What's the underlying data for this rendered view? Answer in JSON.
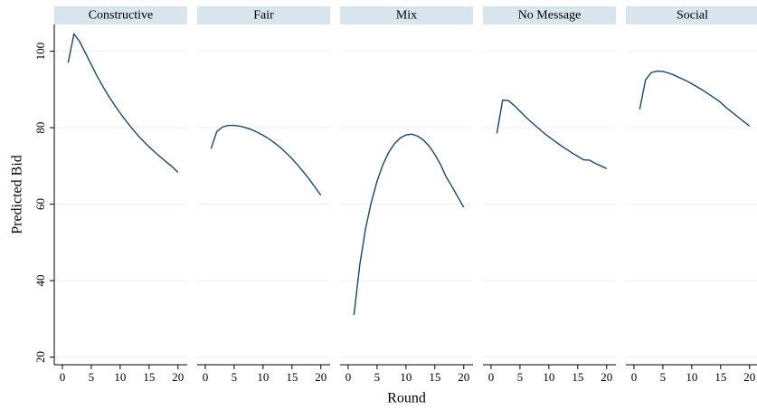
{
  "chart_data": [
    {
      "type": "line",
      "title": "Constructive",
      "y_label": "Predicted Bid",
      "x": [
        1,
        2,
        3,
        4,
        5,
        6,
        7,
        8,
        9,
        10,
        11,
        12,
        13,
        14,
        15,
        16,
        17,
        18,
        19,
        20
      ],
      "values": [
        97,
        104.5,
        102.5,
        99.5,
        96.5,
        93.5,
        90.8,
        88.3,
        86,
        83.8,
        81.8,
        79.9,
        78.1,
        76.5,
        75,
        73.6,
        72.3,
        71,
        69.8,
        68.3
      ],
      "color": "#1a476f",
      "xlim": [
        -1.4,
        21.6
      ],
      "xticks": [
        0,
        5,
        10,
        15,
        20
      ],
      "ylim": [
        18,
        107
      ],
      "yticks": [
        20,
        40,
        60,
        80,
        100
      ],
      "grid": true
    },
    {
      "type": "line",
      "title": "Fair",
      "x": [
        1,
        2,
        3,
        4,
        5,
        6,
        7,
        8,
        9,
        10,
        11,
        12,
        13,
        14,
        15,
        16,
        17,
        18,
        19,
        20
      ],
      "values": [
        74.5,
        79,
        80.2,
        80.6,
        80.6,
        80.4,
        80,
        79.5,
        78.8,
        78,
        77.1,
        76,
        74.8,
        73.4,
        71.9,
        70.2,
        68.4,
        66.5,
        64.4,
        62.3
      ],
      "color": "#1a476f",
      "xlim": [
        -1.4,
        21.6
      ],
      "xticks": [
        0,
        5,
        10,
        15,
        20
      ],
      "ylim": [
        18,
        107
      ],
      "yticks": [
        20,
        40,
        60,
        80,
        100
      ],
      "grid": true
    },
    {
      "type": "line",
      "title": "Mix",
      "x_label": "Round",
      "x": [
        1,
        2,
        3,
        4,
        5,
        6,
        7,
        8,
        9,
        10,
        11,
        12,
        13,
        14,
        15,
        16,
        17,
        18,
        19,
        20
      ],
      "values": [
        31,
        44,
        53.5,
        60.5,
        66,
        70.3,
        73.5,
        75.8,
        77.3,
        78.1,
        78.3,
        77.8,
        76.8,
        75.2,
        73,
        70.3,
        67,
        64.5,
        61.8,
        59.2
      ],
      "color": "#1a476f",
      "xlim": [
        -1.4,
        21.6
      ],
      "xticks": [
        0,
        5,
        10,
        15,
        20
      ],
      "ylim": [
        18,
        107
      ],
      "yticks": [
        20,
        40,
        60,
        80,
        100
      ],
      "grid": true
    },
    {
      "type": "line",
      "title": "No Message",
      "x": [
        1,
        2,
        3,
        4,
        5,
        6,
        7,
        8,
        9,
        10,
        11,
        12,
        13,
        14,
        15,
        16,
        17,
        18,
        19,
        20
      ],
      "values": [
        78.5,
        87.2,
        87.1,
        85.8,
        84.3,
        82.8,
        81.4,
        80.1,
        78.8,
        77.6,
        76.5,
        75.4,
        74.4,
        73.4,
        72.5,
        71.6,
        71.5,
        70.7,
        70,
        69.3
      ],
      "color": "#1a476f",
      "xlim": [
        -1.4,
        21.6
      ],
      "xticks": [
        0,
        5,
        10,
        15,
        20
      ],
      "ylim": [
        18,
        107
      ],
      "yticks": [
        20,
        40,
        60,
        80,
        100
      ],
      "grid": true
    },
    {
      "type": "line",
      "title": "Social",
      "x": [
        1,
        2,
        3,
        4,
        5,
        6,
        7,
        8,
        9,
        10,
        11,
        12,
        13,
        14,
        15,
        16,
        17,
        18,
        19,
        20
      ],
      "values": [
        84.8,
        92.5,
        94.4,
        94.8,
        94.7,
        94.3,
        93.7,
        93,
        92.3,
        91.5,
        90.6,
        89.7,
        88.7,
        87.7,
        86.6,
        85.2,
        84,
        82.8,
        81.6,
        80.4
      ],
      "color": "#1a476f",
      "xlim": [
        -1.4,
        21.6
      ],
      "xticks": [
        0,
        5,
        10,
        15,
        20
      ],
      "ylim": [
        18,
        107
      ],
      "yticks": [
        20,
        40,
        60,
        80,
        100
      ],
      "grid": true
    }
  ]
}
